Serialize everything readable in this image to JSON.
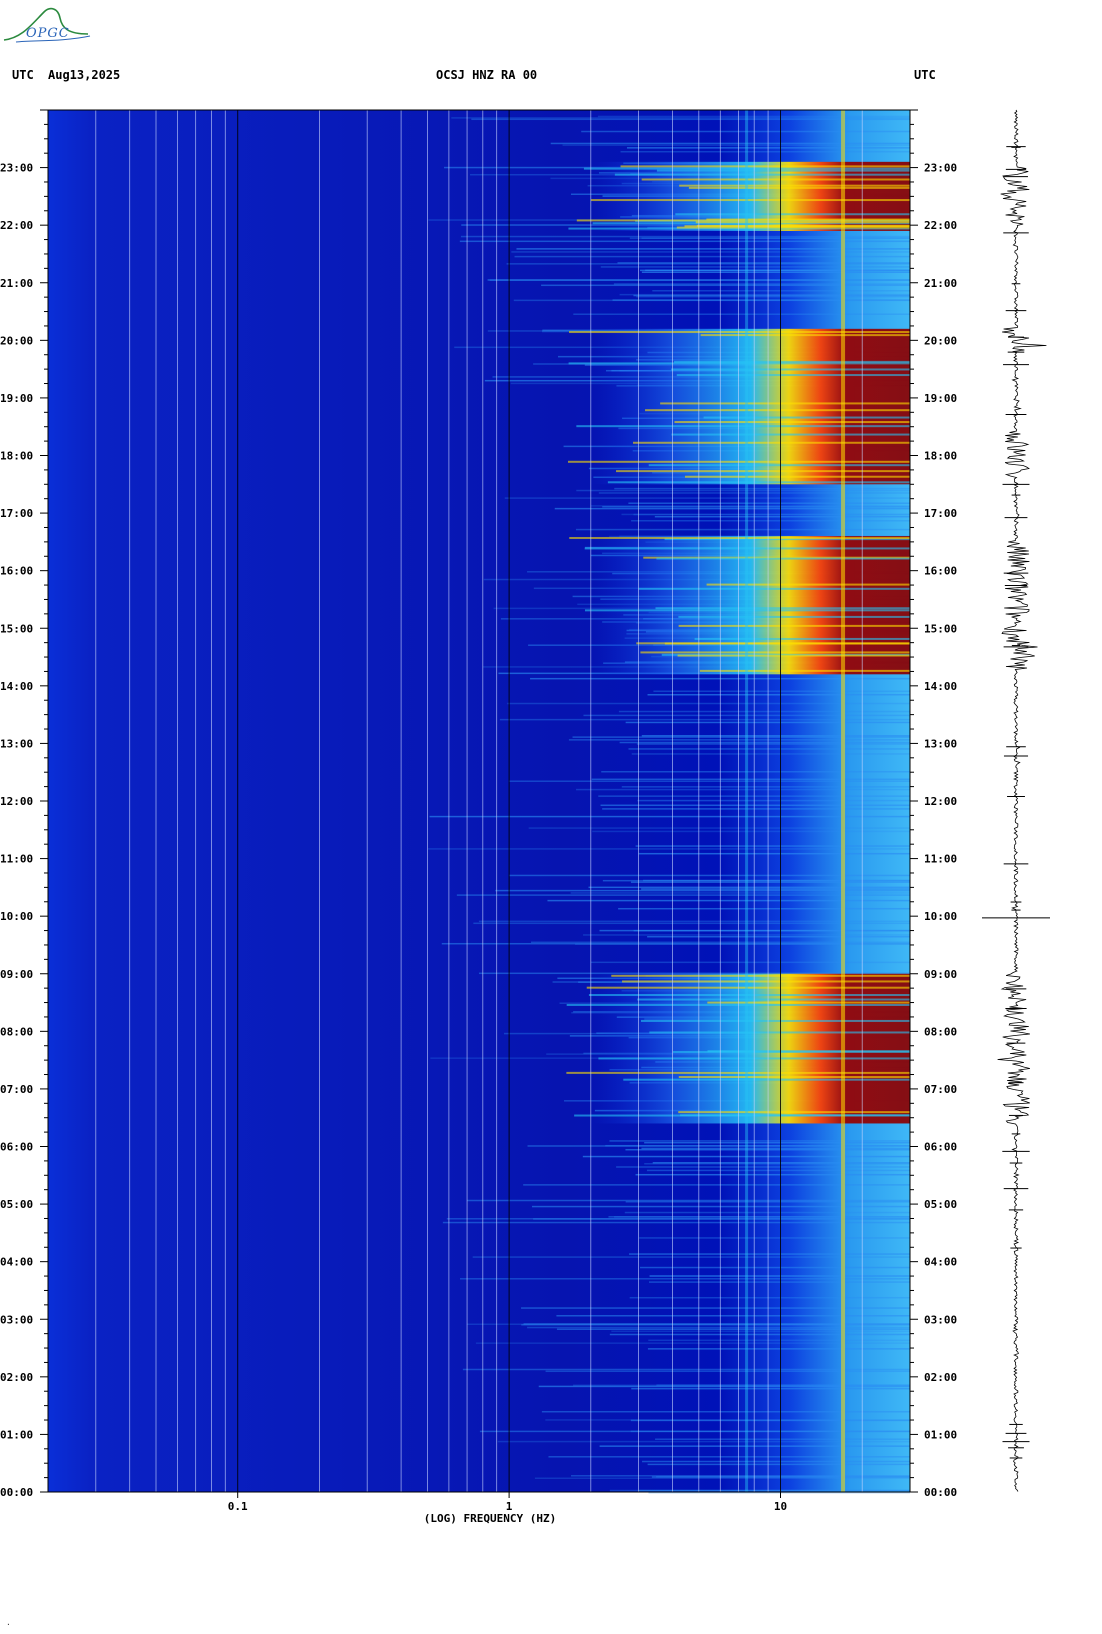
{
  "header": {
    "left_utc": "UTC",
    "date": "Aug13,2025",
    "station": "OCSJ HNZ RA 00",
    "right_utc": "UTC"
  },
  "logo": {
    "text": "OPGC"
  },
  "chart_data": {
    "type": "heatmap",
    "title": "",
    "xlabel": "(LOG) FREQUENCY (HZ)",
    "ylabel": "UTC",
    "xscale": "log",
    "xlim": [
      0.02,
      30
    ],
    "ylim_hours": [
      0,
      24
    ],
    "x_tick_labels": [
      "0.1",
      "1",
      "10"
    ],
    "x_tick_values": [
      0.1,
      1,
      10
    ],
    "y_tick_labels": [
      "00:00",
      "01:00",
      "02:00",
      "03:00",
      "04:00",
      "05:00",
      "06:00",
      "07:00",
      "08:00",
      "09:00",
      "10:00",
      "11:00",
      "12:00",
      "13:00",
      "14:00",
      "15:00",
      "16:00",
      "17:00",
      "18:00",
      "19:00",
      "20:00",
      "21:00",
      "22:00",
      "23:00"
    ],
    "y_tick_values": [
      0,
      1,
      2,
      3,
      4,
      5,
      6,
      7,
      8,
      9,
      10,
      11,
      12,
      13,
      14,
      15,
      16,
      17,
      18,
      19,
      20,
      21,
      22,
      23
    ],
    "colormap": [
      "#0000a0",
      "#0033ff",
      "#00ccff",
      "#ffff00",
      "#ff3300",
      "#8b0000"
    ],
    "high_energy_periods_hours": [
      [
        6.4,
        9.0
      ],
      [
        14.2,
        16.6
      ],
      [
        17.5,
        20.2
      ],
      [
        21.9,
        23.1
      ]
    ],
    "persistent_line_hz": 17
  },
  "seismogram": {
    "strong_bursts_hours": [
      [
        6.4,
        9.0
      ],
      [
        14.3,
        16.5
      ],
      [
        17.6,
        18.4
      ],
      [
        19.8,
        20.2
      ],
      [
        22.0,
        23.0
      ]
    ]
  }
}
